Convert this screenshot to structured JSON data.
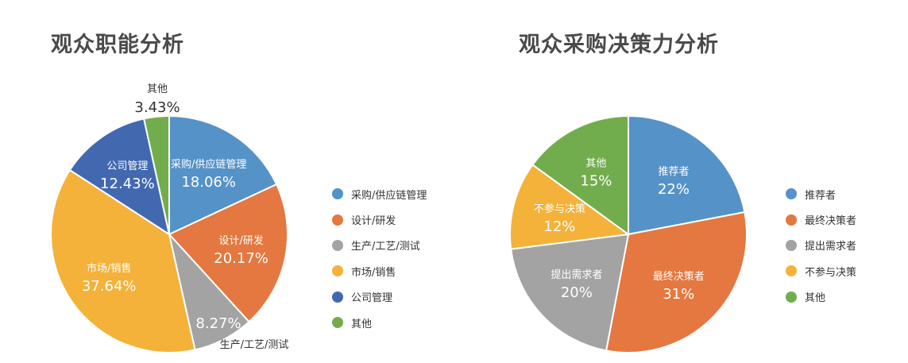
{
  "chart_data": [
    {
      "type": "pie",
      "title": "观众职能分析",
      "slices": [
        {
          "label": "采购/供应链管理",
          "value": 18.06,
          "value_label": "18.06%",
          "color": "#5592c8",
          "label_inside": true
        },
        {
          "label": "设计/研发",
          "value": 20.17,
          "value_label": "20.17%",
          "color": "#e47840",
          "label_inside": true
        },
        {
          "label": "生产/工艺/测试",
          "value": 8.27,
          "value_label": "8.27%",
          "color": "#a3a3a3",
          "label_inside": false
        },
        {
          "label": "市场/销售",
          "value": 37.64,
          "value_label": "37.64%",
          "color": "#f4b23a",
          "label_inside": true
        },
        {
          "label": "公司管理",
          "value": 12.43,
          "value_label": "12.43%",
          "color": "#4269b0",
          "label_inside": true
        },
        {
          "label": "其他",
          "value": 3.43,
          "value_label": "3.43%",
          "color": "#72ad4d",
          "label_inside": false
        }
      ],
      "legend": [
        "采购/供应链管理",
        "设计/研发",
        "生产/工艺/测试",
        "市场/销售",
        "公司管理",
        "其他"
      ],
      "legend_position": "right"
    },
    {
      "type": "pie",
      "title": "观众采购决策力分析",
      "slices": [
        {
          "label": "推荐者",
          "value": 22,
          "value_label": "22%",
          "color": "#5592c8",
          "label_inside": true
        },
        {
          "label": "最终决策者",
          "value": 31,
          "value_label": "31%",
          "color": "#e47840",
          "label_inside": true
        },
        {
          "label": "提出需求者",
          "value": 20,
          "value_label": "20%",
          "color": "#a3a3a3",
          "label_inside": true
        },
        {
          "label": "不参与决策",
          "value": 12,
          "value_label": "12%",
          "color": "#f4b23a",
          "label_inside": true
        },
        {
          "label": "其他",
          "value": 15,
          "value_label": "15%",
          "color": "#72ad4d",
          "label_inside": true
        }
      ],
      "legend": [
        "推荐者",
        "最终决策者",
        "提出需求者",
        "不参与决策",
        "其他"
      ],
      "legend_position": "right"
    }
  ]
}
